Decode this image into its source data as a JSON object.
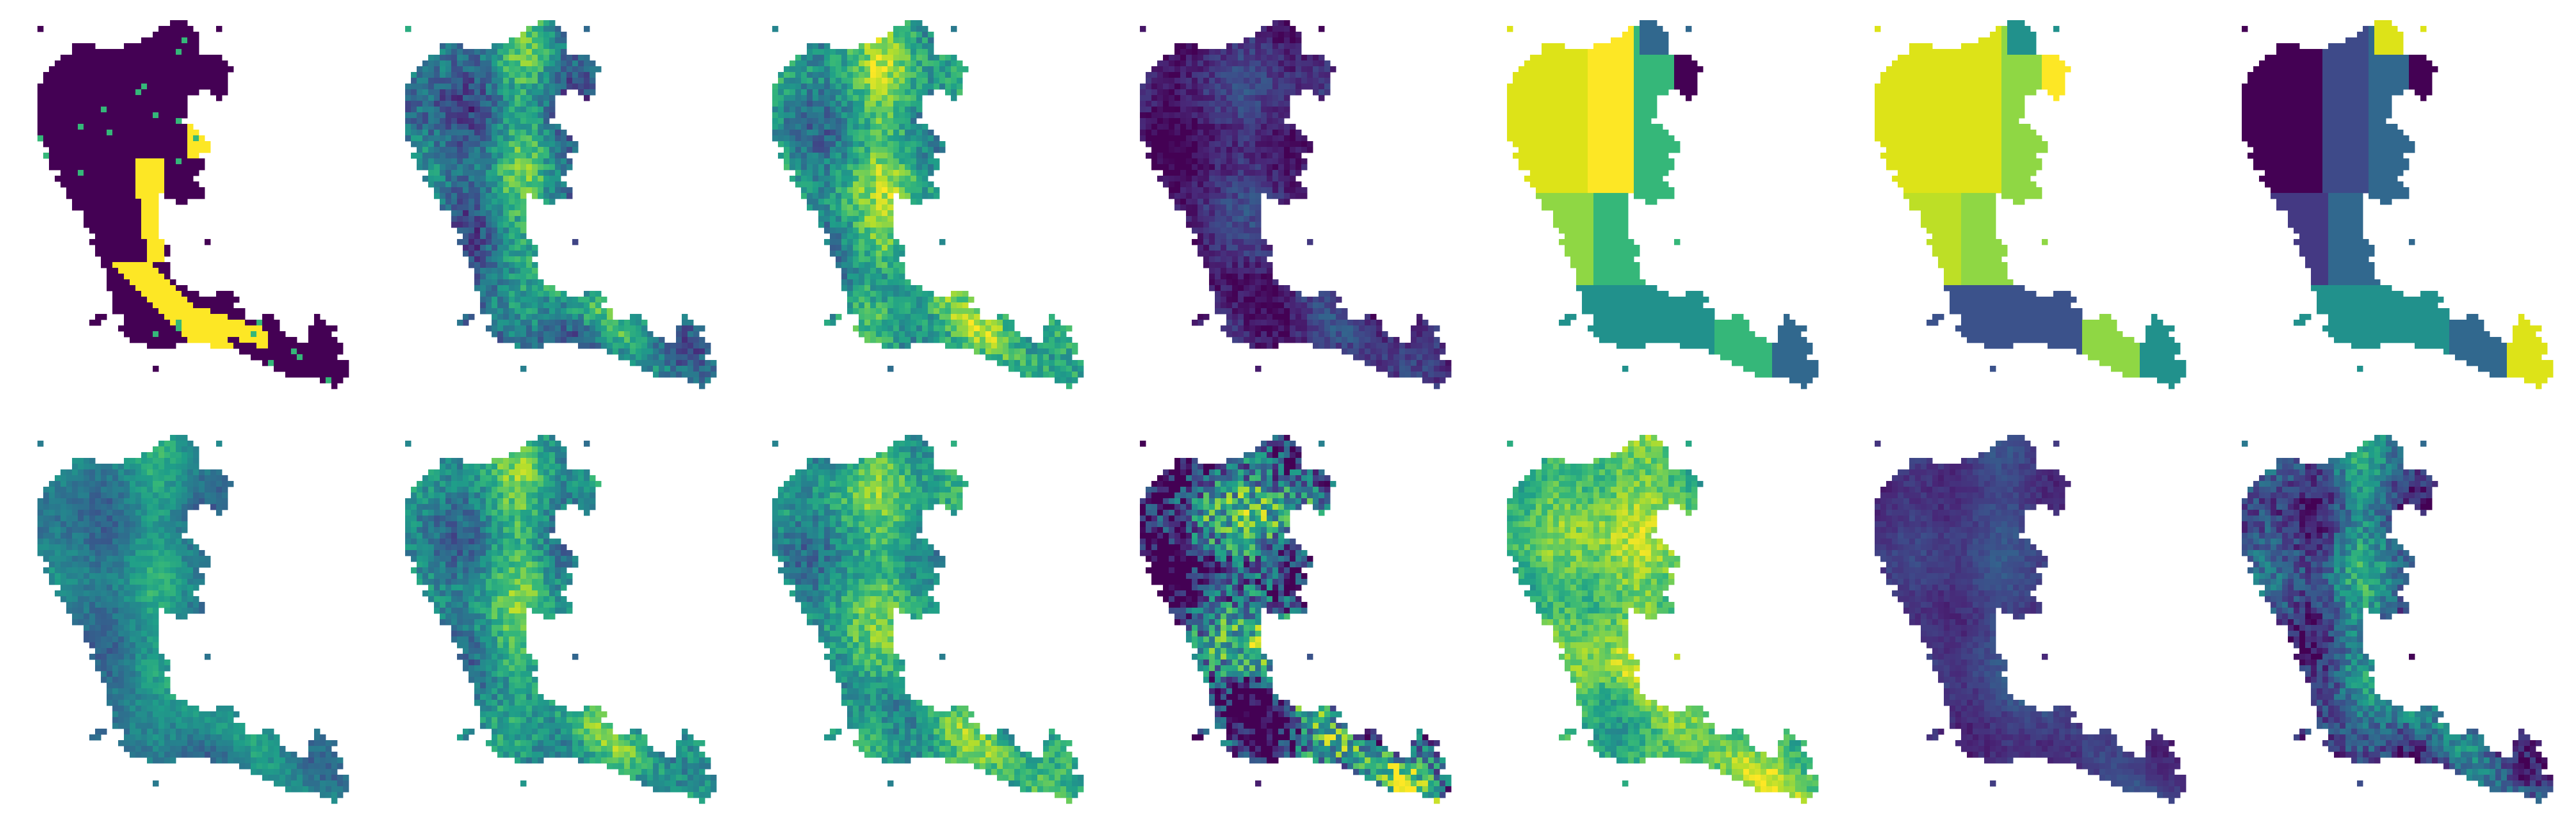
{
  "figure": {
    "rows": 2,
    "columns": 7,
    "colormap": "viridis",
    "axes_visible": false,
    "panels": [
      {
        "row": 1,
        "col": 1,
        "kind": "categorical",
        "palette": [
          "#440154",
          "#fde725",
          "#35b779"
        ]
      },
      {
        "row": 1,
        "col": 2,
        "kind": "continuous",
        "level": 0.35,
        "variation": 0.18
      },
      {
        "row": 1,
        "col": 3,
        "kind": "continuous",
        "level": 0.5,
        "variation": 0.18
      },
      {
        "row": 1,
        "col": 4,
        "kind": "continuous",
        "level": 0.06,
        "variation": 0.1
      },
      {
        "row": 1,
        "col": 5,
        "kind": "regions",
        "palette": [
          "#dde318",
          "#fde725",
          "#8fd744",
          "#35b779",
          "#21918c",
          "#31688e",
          "#440154"
        ]
      },
      {
        "row": 1,
        "col": 6,
        "kind": "regions",
        "palette": [
          "#dde318",
          "#dde318",
          "#bddf26",
          "#8fd744",
          "#3b528b",
          "#21918c",
          "#fde725"
        ]
      },
      {
        "row": 1,
        "col": 7,
        "kind": "regions",
        "palette": [
          "#440154",
          "#3e4a89",
          "#443983",
          "#31688e",
          "#21918c",
          "#dde318"
        ]
      },
      {
        "row": 2,
        "col": 1,
        "kind": "continuous",
        "level": 0.4,
        "variation": 0.1
      },
      {
        "row": 2,
        "col": 2,
        "kind": "continuous",
        "level": 0.45,
        "variation": 0.16
      },
      {
        "row": 2,
        "col": 3,
        "kind": "continuous",
        "level": 0.5,
        "variation": 0.16
      },
      {
        "row": 2,
        "col": 4,
        "kind": "continuous",
        "level": 0.12,
        "variation": 0.4
      },
      {
        "row": 2,
        "col": 5,
        "kind": "continuous",
        "level": 0.68,
        "variation": 0.14
      },
      {
        "row": 2,
        "col": 6,
        "kind": "continuous",
        "level": 0.15,
        "variation": 0.06
      },
      {
        "row": 2,
        "col": 7,
        "kind": "continuous",
        "level": 0.22,
        "variation": 0.18
      }
    ]
  }
}
